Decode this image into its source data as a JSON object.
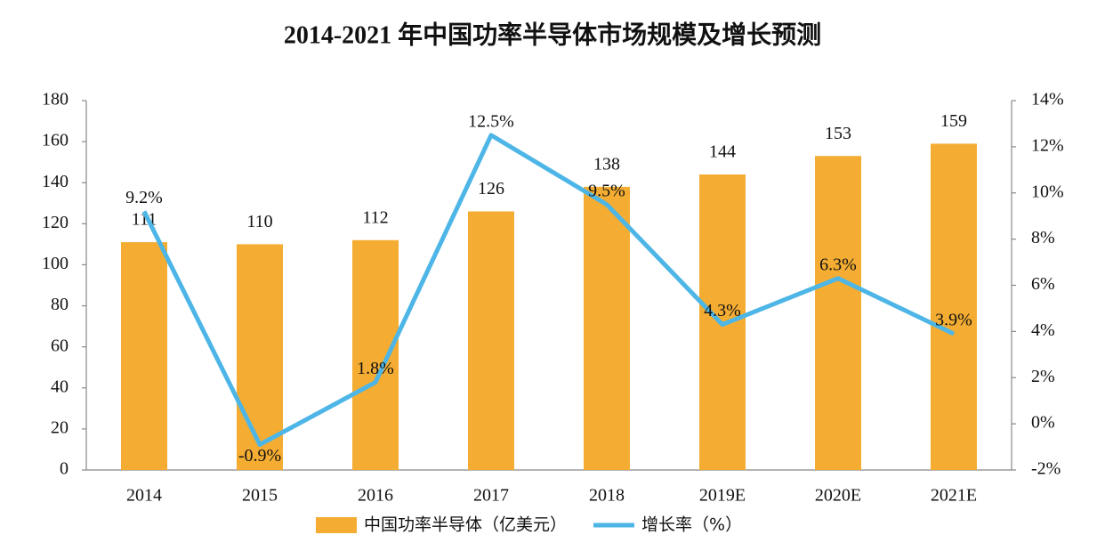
{
  "chart_data": {
    "type": "bar",
    "title": "2014-2021 年中国功率半导体市场规模及增长预测",
    "categories": [
      "2014",
      "2015",
      "2016",
      "2017",
      "2018",
      "2019E",
      "2020E",
      "2021E"
    ],
    "series": [
      {
        "name": "中国功率半导体（亿美元）",
        "type": "bar",
        "color": "#f4ad32",
        "values": [
          111,
          110,
          112,
          126,
          138,
          144,
          153,
          159
        ]
      },
      {
        "name": "增长率（%）",
        "type": "line",
        "axis": "y2",
        "color": "#4db6e6",
        "values": [
          9.2,
          -0.9,
          1.8,
          12.5,
          9.5,
          4.3,
          6.3,
          3.9
        ],
        "value_labels": [
          "9.2%",
          "-0.9%",
          "1.8%",
          "12.5%",
          "9.5%",
          "4.3%",
          "6.3%",
          "3.9%"
        ]
      }
    ],
    "ylim": [
      0,
      180
    ],
    "yticks": [
      0,
      20,
      40,
      60,
      80,
      100,
      120,
      140,
      160,
      180
    ],
    "y2lim": [
      -2,
      14
    ],
    "y2ticks": [
      {
        "value": -2,
        "label": "-2%"
      },
      {
        "value": 0,
        "label": "0%"
      },
      {
        "value": 2,
        "label": "2%"
      },
      {
        "value": 4,
        "label": "4%"
      },
      {
        "value": 6,
        "label": "6%"
      },
      {
        "value": 8,
        "label": "8%"
      },
      {
        "value": 10,
        "label": "10%"
      },
      {
        "value": 12,
        "label": "12%"
      },
      {
        "value": 14,
        "label": "14%"
      }
    ],
    "legend": "bottom"
  }
}
